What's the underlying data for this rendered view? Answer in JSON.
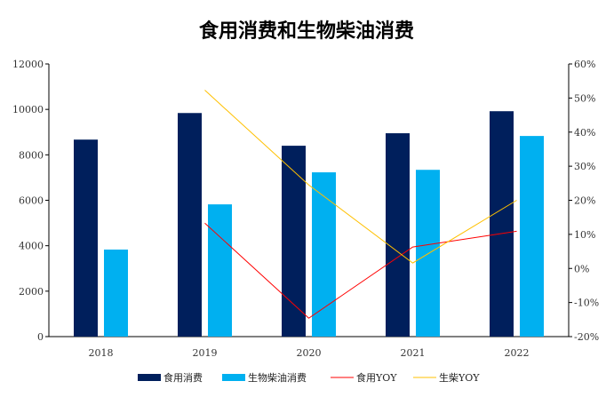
{
  "chart_data": {
    "type": "bar",
    "title": "食用消费和生物柴油消费",
    "categories": [
      "2018",
      "2019",
      "2020",
      "2021",
      "2022"
    ],
    "ylim": [
      0,
      12000
    ],
    "yticks": [
      "0",
      "2000",
      "4000",
      "6000",
      "8000",
      "10000",
      "12000"
    ],
    "y2lim": [
      -20,
      60
    ],
    "y2ticks": [
      "-20%",
      "-10%",
      "0%",
      "10%",
      "20%",
      "30%",
      "40%",
      "50%",
      "60%"
    ],
    "series": [
      {
        "name": "食用消费",
        "type": "bar",
        "axis": "left",
        "color": "#001f5c",
        "values": [
          8670,
          9840,
          8400,
          8950,
          9920
        ]
      },
      {
        "name": "生物柴油消费",
        "type": "bar",
        "axis": "left",
        "color": "#00b0f0",
        "values": [
          3830,
          5820,
          7230,
          7340,
          8830
        ]
      },
      {
        "name": "食用YOY",
        "type": "line",
        "axis": "right",
        "color": "#ff0000",
        "values": [
          null,
          13.3,
          -14.6,
          6.3,
          10.9
        ]
      },
      {
        "name": "生柴YOY",
        "type": "line",
        "axis": "right",
        "color": "#ffc000",
        "values": [
          null,
          52.3,
          24.5,
          1.6,
          20.0
        ]
      }
    ],
    "grid": false,
    "legend": "bottom"
  }
}
